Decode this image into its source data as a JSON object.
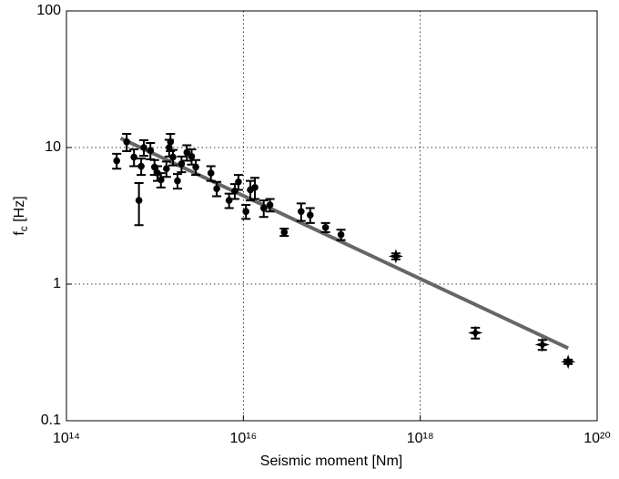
{
  "chart_data": {
    "type": "scatter",
    "xlabel": "Seismic moment [Nm]",
    "ylabel": [
      "f",
      "c",
      " [Hz]"
    ],
    "log_x": true,
    "log_y": true,
    "grid": true,
    "xlim": [
      100000000000000.0,
      1e+20
    ],
    "ylim": [
      0.1,
      100
    ],
    "xticks": [
      {
        "value": 100000000000000.0,
        "label": "10¹⁴"
      },
      {
        "value": 1e+16,
        "label": "10¹⁶"
      },
      {
        "value": 1e+18,
        "label": "10¹⁸"
      },
      {
        "value": 1e+20,
        "label": "10²⁰"
      }
    ],
    "yticks": [
      0.1,
      1,
      10,
      100
    ],
    "series": [
      {
        "marker": "circle",
        "color": "#000000",
        "x": [
          370000000000000.0,
          480000000000000.0,
          580000000000000.0,
          660000000000000.0,
          700000000000000.0,
          750000000000000.0,
          890000000000000.0,
          990000000000000.0,
          1070000000000000.0,
          1170000000000000.0,
          1350000000000000.0,
          1450000000000000.0,
          1500000000000000.0,
          1600000000000000.0,
          1800000000000000.0,
          2000000000000000.0,
          2300000000000000.0,
          2600000000000000.0,
          2900000000000000.0,
          4300000000000000.0,
          5000000000000000.0,
          6900000000000000.0,
          8000000000000000.0,
          8800000000000000.0,
          1.07e+16,
          1.2e+16,
          1.35e+16,
          1.7e+16,
          2e+16,
          2.9e+16,
          4.5e+16,
          5.7e+16,
          8.5e+16,
          1.27e+17
        ],
        "values": [
          8,
          11,
          8.5,
          4.1,
          7.3,
          10,
          9.5,
          7.2,
          6.5,
          5.8,
          7,
          10,
          11,
          8.5,
          5.7,
          7.6,
          9.2,
          8.6,
          7.2,
          6.5,
          5,
          4.1,
          4.8,
          5.6,
          3.4,
          4.9,
          5.1,
          3.6,
          3.8,
          2.4,
          3.4,
          3.2,
          2.6,
          2.3
        ],
        "errors": [
          1,
          1.6,
          1.2,
          1.4,
          1,
          1.3,
          1.3,
          0.9,
          0.8,
          0.7,
          0.9,
          1.4,
          1.6,
          1.1,
          0.7,
          1,
          1.2,
          1.1,
          0.9,
          0.8,
          0.6,
          0.5,
          0.6,
          0.7,
          0.4,
          0.8,
          0.9,
          0.5,
          0.4,
          0.15,
          0.5,
          0.4,
          0.2,
          0.2
        ]
      },
      {
        "marker": "star",
        "color": "#000000",
        "x": [
          5.3e+17,
          4.2e+18,
          2.4e+19,
          4.7e+19
        ],
        "values": [
          1.6,
          0.44,
          0.36,
          0.27
        ],
        "errors": [
          0.08,
          0.04,
          0.03,
          0.01
        ]
      }
    ],
    "fit": {
      "color": "#666666",
      "x": [
        410000000000000.0,
        4.7e+19
      ],
      "values": [
        11.7,
        0.34
      ]
    }
  }
}
